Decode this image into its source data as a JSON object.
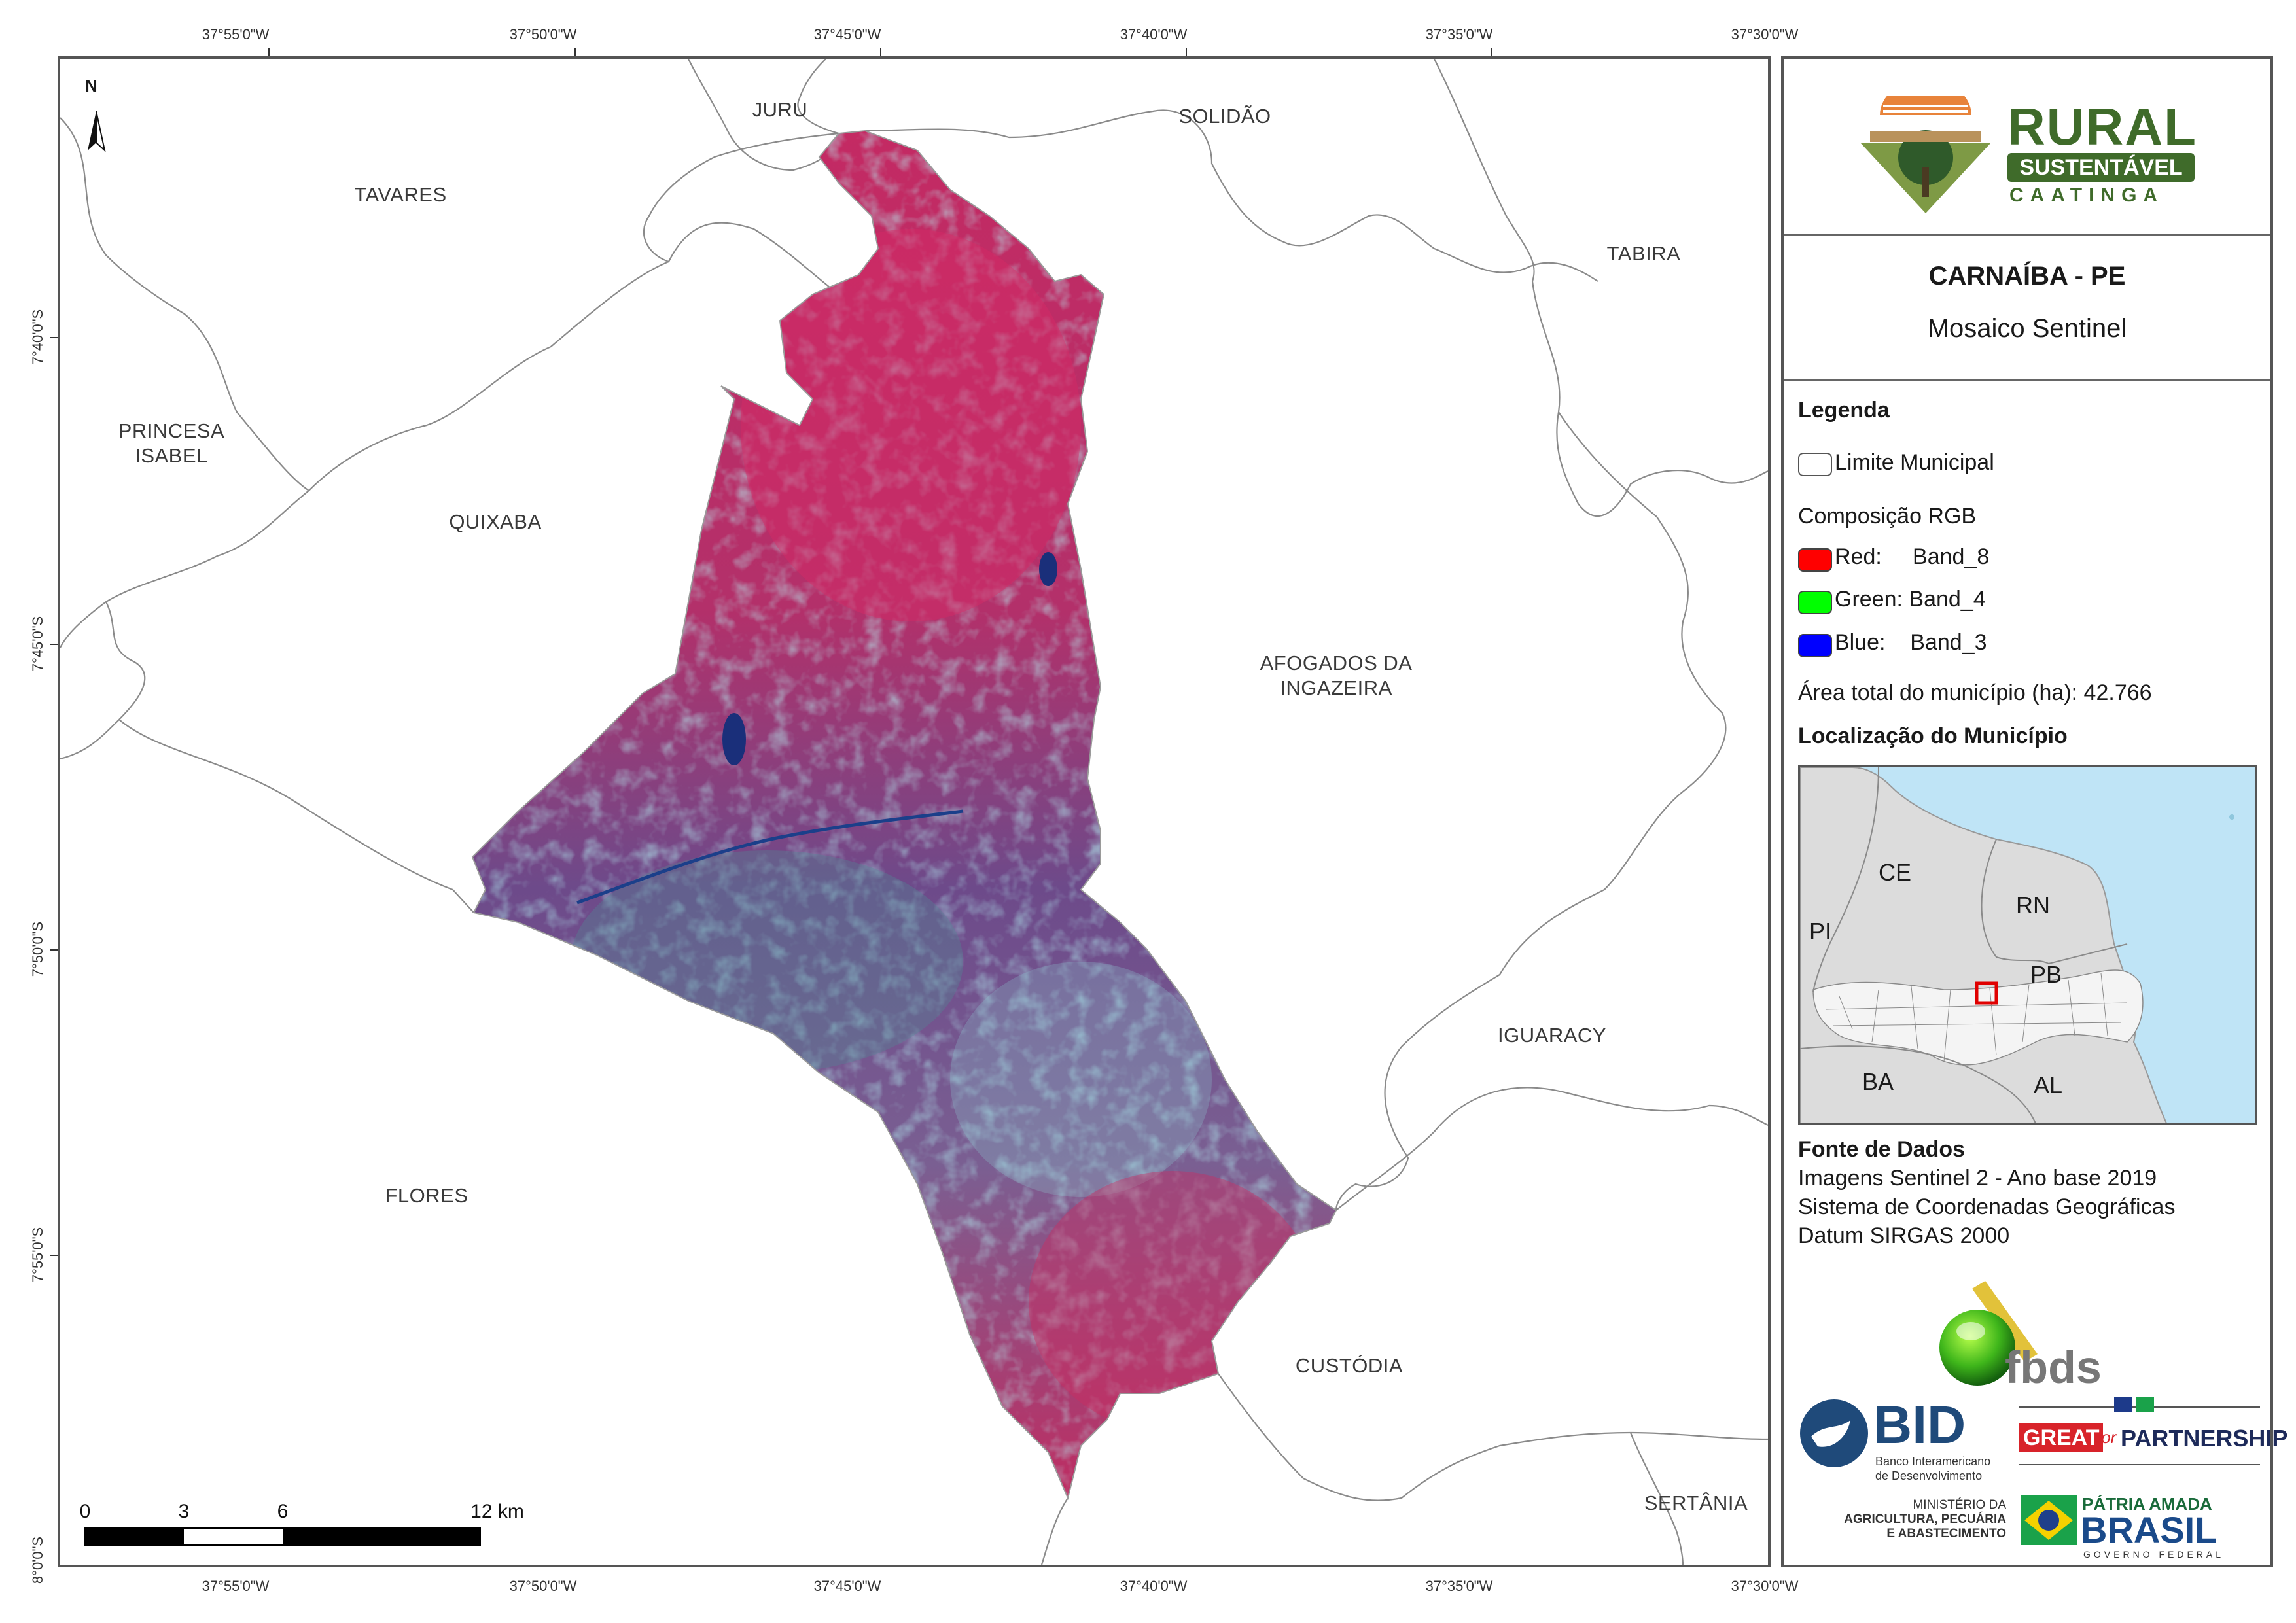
{
  "coords": {
    "top": [
      "37°55'0\"W",
      "37°50'0\"W",
      "37°45'0\"W",
      "37°40'0\"W",
      "37°35'0\"W",
      "37°30'0\"W"
    ],
    "bottom": [
      "37°55'0\"W",
      "37°50'0\"W",
      "37°45'0\"W",
      "37°40'0\"W",
      "37°35'0\"W",
      "37°30'0\"W"
    ],
    "left": [
      "7°40'0\"S",
      "7°45'0\"S",
      "7°50'0\"S",
      "7°55'0\"S",
      "8°0'0\"S"
    ]
  },
  "map": {
    "north": "N",
    "towns": {
      "juru": "JURU",
      "solidao": "SOLIDÃO",
      "tavares": "TAVARES",
      "tabira": "TABIRA",
      "princesa": "PRINCESA ISABEL",
      "quixaba": "QUIXABA",
      "afogados": "AFOGADOS DA INGAZEIRA",
      "iguaracy": "IGUARACY",
      "flores": "FLORES",
      "custodia": "CUSTÓDIA",
      "sertania": "SERTÂNIA"
    },
    "scale": {
      "l0": "0",
      "l3": "3",
      "l6": "6",
      "l12": "12 km"
    }
  },
  "panel": {
    "logo": {
      "rural": "RURAL",
      "sustentavel": "SUSTENTÁVEL",
      "caatinga": "CAATINGA"
    },
    "title": "CARNAÍBA - PE",
    "subtitle": "Mosaico Sentinel",
    "legend": {
      "heading": "Legenda",
      "limite": "Limite Municipal",
      "rgb_heading": "Composição RGB",
      "red": "Red:     Band_8",
      "green": "Green: Band_4",
      "blue": "Blue:    Band_3",
      "area": "Área total do município (ha): 42.766",
      "colors": {
        "red": "#ff0000",
        "green": "#00ff00",
        "blue": "#0000ff"
      }
    },
    "locator": {
      "heading": "Localização do Município",
      "ce": "CE",
      "rn": "RN",
      "pi": "PI",
      "pb": "PB",
      "ba": "BA",
      "al": "AL"
    },
    "source": {
      "heading": "Fonte de Dados",
      "l1": "Imagens Sentinel 2 - Ano base 2019",
      "l2": "Sistema de Coordenadas Geográficas",
      "l3": "Datum SIRGAS 2000"
    },
    "logos": {
      "fbds": "fbds",
      "bid": "BID",
      "bid_sub1": "Banco Interamericano",
      "bid_sub2": "de Desenvolvimento",
      "great": "GREAT",
      "for": "for",
      "partnership": "PARTNERSHIP",
      "min1": "MINISTÉRIO DA",
      "min2": "AGRICULTURA, PECUÁRIA",
      "min3": "E ABASTECIMENTO",
      "patria": "PÁTRIA AMADA",
      "brasil": "BRASIL",
      "governo": "GOVERNO FEDERAL"
    }
  }
}
